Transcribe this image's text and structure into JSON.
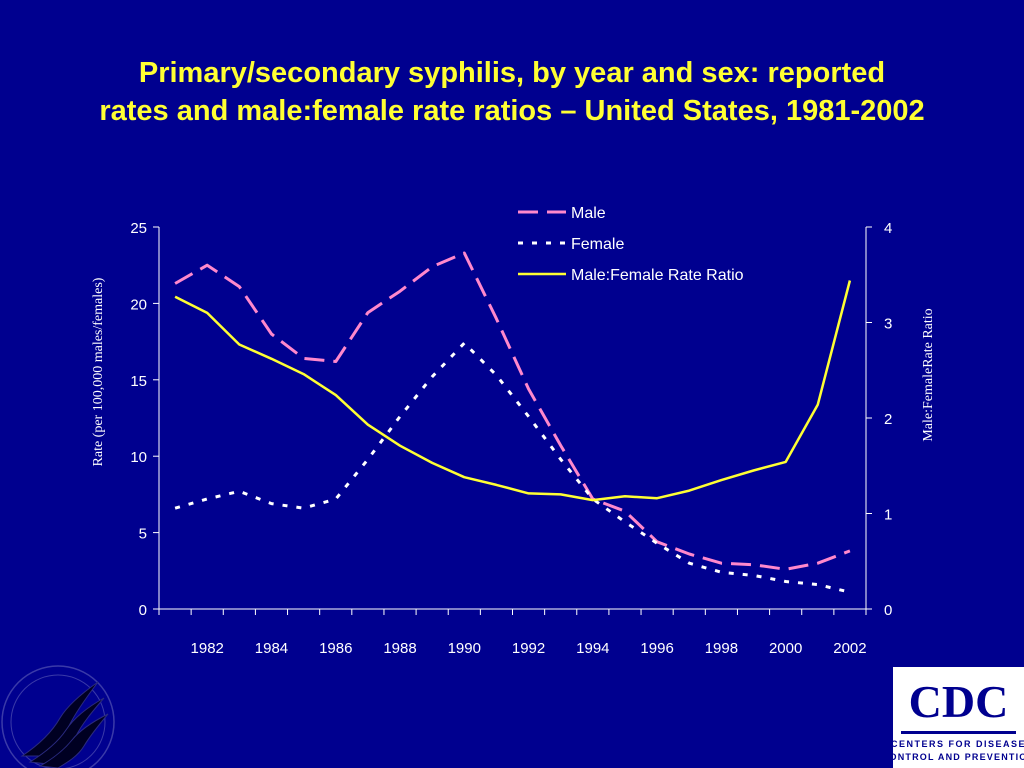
{
  "title": {
    "line1": "Primary/secondary syphilis, by year and sex:  reported",
    "line2": "rates and male:female rate ratios – United States, 1981-2002"
  },
  "colors": {
    "background": "#00008f",
    "title": "#ffff33",
    "male": "#ff88cc",
    "female": "#ffffff",
    "ratio": "#ffff33",
    "axis_text": "#ffffff"
  },
  "chart_data": {
    "type": "line",
    "x": [
      1981,
      1982,
      1983,
      1984,
      1985,
      1986,
      1987,
      1988,
      1989,
      1990,
      1991,
      1992,
      1993,
      1994,
      1995,
      1996,
      1997,
      1998,
      1999,
      2000,
      2001,
      2002
    ],
    "xlabel": "",
    "x_tick_labels": [
      "1982",
      "1984",
      "1986",
      "1988",
      "1990",
      "1992",
      "1994",
      "1996",
      "1998",
      "2000",
      "2002"
    ],
    "ylabel": "Rate (per 100,000 males/females)",
    "ylim": [
      0,
      25
    ],
    "y_ticks": [
      "0",
      "5",
      "10",
      "15",
      "20",
      "25"
    ],
    "y2label": "Male:FemaleRate Ratio",
    "y2lim": [
      0,
      4
    ],
    "y2_ticks": [
      "0",
      "1",
      "2",
      "3",
      "4"
    ],
    "grid": false,
    "legend_position": "top-right",
    "series": [
      {
        "name": "Male",
        "axis": "left",
        "style": "dashed",
        "values": [
          21.3,
          22.5,
          21.1,
          18.0,
          16.4,
          16.2,
          19.4,
          20.8,
          22.4,
          23.3,
          19.0,
          14.4,
          10.7,
          7.2,
          6.4,
          4.4,
          3.6,
          3.0,
          2.9,
          2.6,
          3.0,
          3.8
        ]
      },
      {
        "name": "Female",
        "axis": "left",
        "style": "dotted",
        "values": [
          6.6,
          7.2,
          7.7,
          6.9,
          6.6,
          7.2,
          9.8,
          12.6,
          15.2,
          17.4,
          15.3,
          12.6,
          9.8,
          7.2,
          5.7,
          4.3,
          3.0,
          2.4,
          2.2,
          1.8,
          1.6,
          1.1
        ]
      },
      {
        "name": "Male:Female Rate Ratio",
        "axis": "right",
        "style": "solid",
        "values": [
          3.27,
          3.1,
          2.77,
          2.62,
          2.46,
          2.24,
          1.93,
          1.71,
          1.53,
          1.38,
          1.3,
          1.21,
          1.2,
          1.14,
          1.18,
          1.16,
          1.24,
          1.35,
          1.45,
          1.54,
          2.14,
          3.44
        ]
      }
    ]
  }
}
